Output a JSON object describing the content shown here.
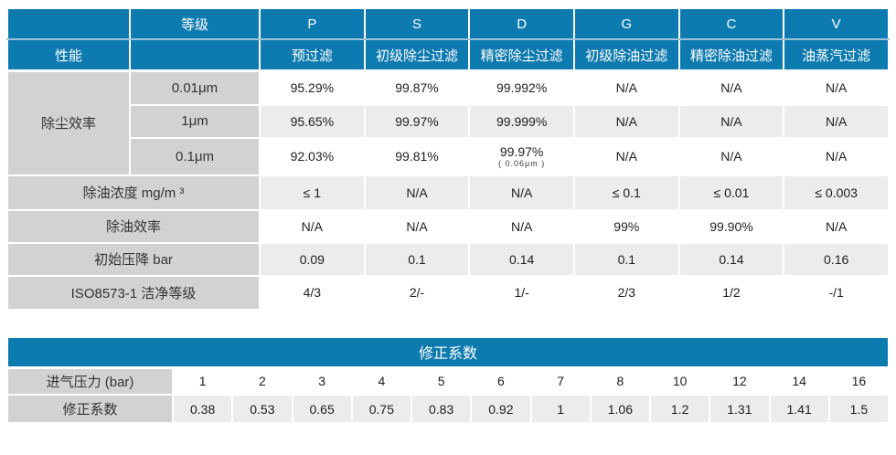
{
  "colors": {
    "header_blue": "#0d7ab0",
    "header_divider_blue": "#9cc3da",
    "label_gray": "#d2d2d4",
    "alt_row_gray": "#ececee",
    "text_dark": "#1e1e1e"
  },
  "spec": {
    "corner_blank": "",
    "grade_label": "等级",
    "perf_label": "性能",
    "perf_blank": "",
    "grades": [
      "P",
      "S",
      "D",
      "G",
      "C",
      "V"
    ],
    "grade_names": [
      "预过滤",
      "初级除尘过滤",
      "精密除尘过滤",
      "初级除油过滤",
      "精密除油过滤",
      "油蒸汽过滤"
    ],
    "dust": {
      "label": "除尘效率",
      "rows": [
        {
          "size": "0.01μm",
          "values": [
            "95.29%",
            "99.87%",
            "99.992%",
            "N/A",
            "N/A",
            "N/A"
          ]
        },
        {
          "size": "1μm",
          "values": [
            "95.65%",
            "99.97%",
            "99.999%",
            "N/A",
            "N/A",
            "N/A"
          ]
        },
        {
          "size": "0.1μm",
          "values": [
            "92.03%",
            "99.81%",
            "99.97%",
            "N/A",
            "N/A",
            "N/A"
          ],
          "note": "( 0.06μm )"
        }
      ]
    },
    "rows": [
      {
        "label": "除油浓度 mg/m ³",
        "values": [
          "≤ 1",
          "N/A",
          "N/A",
          "≤ 0.1",
          "≤ 0.01",
          "≤ 0.003"
        ]
      },
      {
        "label": "除油效率",
        "values": [
          "N/A",
          "N/A",
          "N/A",
          "99%",
          "99.90%",
          "N/A"
        ]
      },
      {
        "label": "初始压降 bar",
        "values": [
          "0.09",
          "0.1",
          "0.14",
          "0.1",
          "0.14",
          "0.16"
        ]
      },
      {
        "label": "ISO8573-1 洁净等级",
        "values": [
          "4/3",
          "2/-",
          "1/-",
          "2/3",
          "1/2",
          "-/1"
        ]
      }
    ]
  },
  "correction": {
    "title": "修正系数",
    "pressure_label": "进气压力 (bar)",
    "pressures": [
      "1",
      "2",
      "3",
      "4",
      "5",
      "6",
      "7",
      "8",
      "10",
      "12",
      "14",
      "16"
    ],
    "factor_label": "修正系数",
    "factors": [
      "0.38",
      "0.53",
      "0.65",
      "0.75",
      "0.83",
      "0.92",
      "1",
      "1.06",
      "1.2",
      "1.31",
      "1.41",
      "1.5"
    ]
  }
}
